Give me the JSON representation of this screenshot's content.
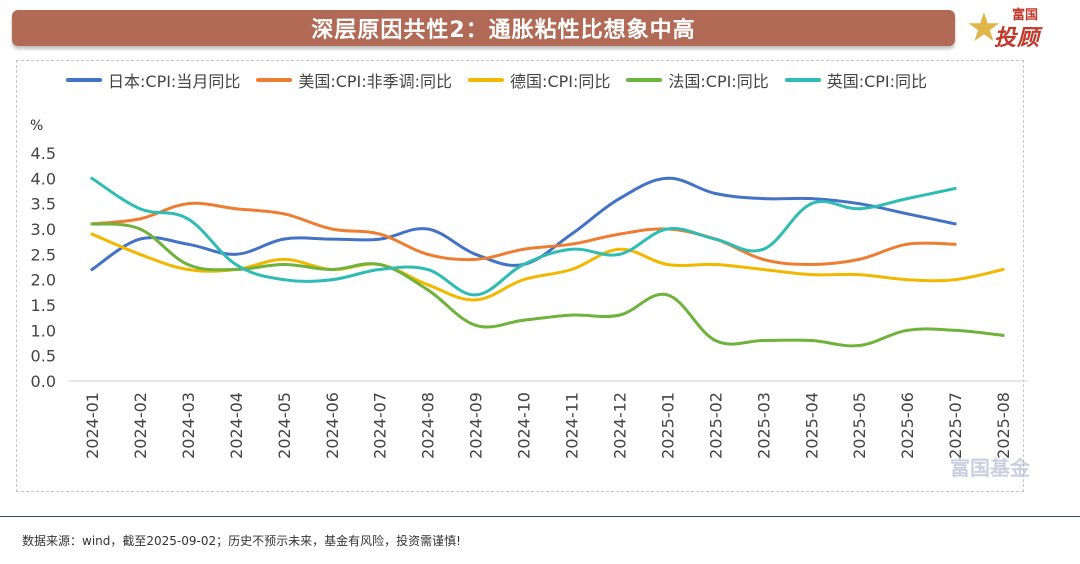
{
  "header": {
    "title": "深层原因共性2：通胀粘性比想象中高",
    "logo_top": "富国",
    "logo_main": "投顾",
    "logo_star_icon": "star-icon"
  },
  "footer": {
    "source": "数据来源：wind，截至2025-09-02；历史不预示未来，基金有风险，投资需谨慎!"
  },
  "watermark": {
    "text": "富国基金"
  },
  "chart_data": {
    "type": "line",
    "title": "",
    "xlabel": "",
    "ylabel": "%",
    "ylim": [
      0.0,
      4.5
    ],
    "yticks": [
      "0.0",
      "0.5",
      "1.0",
      "1.5",
      "2.0",
      "2.5",
      "3.0",
      "3.5",
      "4.0",
      "4.5"
    ],
    "grid": false,
    "legend_position": "top",
    "categories": [
      "2024-01",
      "2024-02",
      "2024-03",
      "2024-04",
      "2024-05",
      "2024-06",
      "2024-07",
      "2024-08",
      "2024-09",
      "2024-10",
      "2024-11",
      "2024-12",
      "2025-01",
      "2025-02",
      "2025-03",
      "2025-04",
      "2025-05",
      "2025-06",
      "2025-07",
      "2025-08"
    ],
    "series": [
      {
        "name": "日本:CPI:当月同比",
        "color": "#4472c4",
        "values": [
          2.2,
          2.8,
          2.7,
          2.5,
          2.8,
          2.8,
          2.8,
          3.0,
          2.5,
          2.3,
          2.9,
          3.6,
          4.0,
          3.7,
          3.6,
          3.6,
          3.5,
          3.3,
          3.1,
          null
        ]
      },
      {
        "name": "美国:CPI:非季调:同比",
        "color": "#ed7d31",
        "values": [
          3.1,
          3.2,
          3.5,
          3.4,
          3.3,
          3.0,
          2.9,
          2.5,
          2.4,
          2.6,
          2.7,
          2.9,
          3.0,
          2.8,
          2.4,
          2.3,
          2.4,
          2.7,
          2.7,
          null
        ]
      },
      {
        "name": "德国:CPI:同比",
        "color": "#f2b800",
        "values": [
          2.9,
          2.5,
          2.2,
          2.2,
          2.4,
          2.2,
          2.3,
          1.9,
          1.6,
          2.0,
          2.2,
          2.6,
          2.3,
          2.3,
          2.2,
          2.1,
          2.1,
          2.0,
          2.0,
          2.2
        ]
      },
      {
        "name": "法国:CPI:同比",
        "color": "#70b33c",
        "values": [
          3.1,
          3.0,
          2.3,
          2.2,
          2.3,
          2.2,
          2.3,
          1.8,
          1.1,
          1.2,
          1.3,
          1.3,
          1.7,
          0.8,
          0.8,
          0.8,
          0.7,
          1.0,
          1.0,
          0.9
        ]
      },
      {
        "name": "英国:CPI:同比",
        "color": "#2ebcb4",
        "values": [
          4.0,
          3.4,
          3.2,
          2.3,
          2.0,
          2.0,
          2.2,
          2.2,
          1.7,
          2.3,
          2.6,
          2.5,
          3.0,
          2.8,
          2.6,
          3.5,
          3.4,
          3.6,
          3.8,
          null
        ]
      }
    ]
  }
}
